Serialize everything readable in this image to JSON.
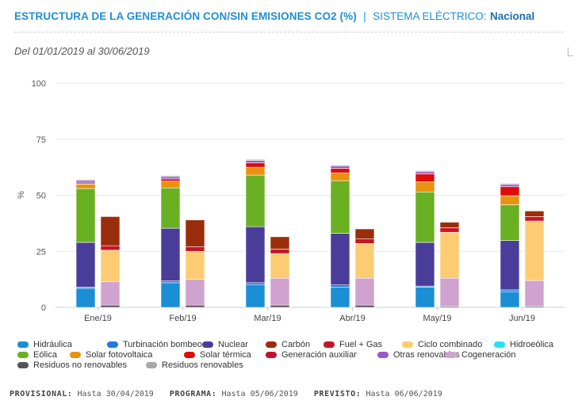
{
  "header": {
    "title": "ESTRUCTURA DE LA GENERACIÓN CON/SIN EMISIONES CO2 (%)",
    "separator": "|",
    "system_label": "SISTEMA ELÉCTRICO:",
    "system_value": "Nacional"
  },
  "period": "Del 01/01/2019 al 30/06/2019",
  "footer": {
    "provisional_label": "PROVISIONAL:",
    "provisional_value": "Hasta 30/04/2019",
    "programa_label": "PROGRAMA:",
    "programa_value": "Hasta 05/06/2019",
    "previsto_label": "PREVISTO:",
    "previsto_value": "Hasta 06/06/2019"
  },
  "chart_data": {
    "type": "bar",
    "stacked": true,
    "ylabel": "%",
    "ylim": [
      0,
      100
    ],
    "yticks": [
      0,
      25,
      50,
      75,
      100
    ],
    "grid": true,
    "legend_position": "bottom",
    "categories": [
      "Ene/19",
      "Feb/19",
      "Mar/19",
      "Abr/19",
      "May/19",
      "Jun/19"
    ],
    "groups": [
      "sin_emisiones",
      "con_emisiones"
    ],
    "series": [
      {
        "name": "Hidráulica",
        "color": "#1a8fd6",
        "group": "sin_emisiones",
        "values": [
          8.5,
          11.0,
          10.0,
          9.0,
          9.0,
          7.0
        ]
      },
      {
        "name": "Turbinación bombeo",
        "color": "#1f7bdc",
        "group": "sin_emisiones",
        "values": [
          0.5,
          0.8,
          1.0,
          1.0,
          0.5,
          0.8
        ]
      },
      {
        "name": "Nuclear",
        "color": "#4a3d9a",
        "group": "sin_emisiones",
        "values": [
          20.0,
          23.5,
          25.0,
          23.0,
          19.5,
          22.0
        ]
      },
      {
        "name": "Eólica",
        "color": "#6ab023",
        "group": "sin_emisiones",
        "values": [
          24.0,
          18.0,
          23.0,
          23.5,
          22.5,
          16.0
        ]
      },
      {
        "name": "Solar fotovoltaica",
        "color": "#e8920f",
        "group": "sin_emisiones",
        "values": [
          2.0,
          3.0,
          3.5,
          3.5,
          4.5,
          4.0
        ]
      },
      {
        "name": "Solar térmica",
        "color": "#e00b0b",
        "group": "sin_emisiones",
        "values": [
          0.5,
          1.0,
          2.0,
          2.0,
          3.5,
          4.0
        ]
      },
      {
        "name": "Otras renovables",
        "color": "#9b59c6",
        "group": "sin_emisiones",
        "values": [
          1.0,
          1.0,
          1.0,
          1.0,
          1.0,
          1.0
        ]
      },
      {
        "name": "Residuos renovables",
        "color": "#a8a8a8",
        "group": "sin_emisiones",
        "values": [
          0.5,
          0.5,
          0.5,
          0.5,
          0.5,
          0.5
        ]
      },
      {
        "name": "Hidroeólica",
        "color": "#27e2ee",
        "group": "sin_emisiones",
        "values": [
          0.0,
          0.0,
          0.0,
          0.0,
          0.0,
          0.0
        ]
      },
      {
        "name": "Residuos no renovables",
        "color": "#555555",
        "group": "con_emisiones",
        "values": [
          1.0,
          1.0,
          1.0,
          1.0,
          0.5,
          0.5
        ]
      },
      {
        "name": "Cogeneración",
        "color": "#cfa2cf",
        "group": "con_emisiones",
        "values": [
          10.5,
          11.5,
          12.0,
          12.0,
          12.5,
          11.5
        ]
      },
      {
        "name": "Ciclo combinado",
        "color": "#fdcc72",
        "group": "con_emisiones",
        "values": [
          14.0,
          12.5,
          11.0,
          15.5,
          20.5,
          26.5
        ]
      },
      {
        "name": "Generación auxiliar",
        "color": "#c8102e",
        "group": "con_emisiones",
        "values": [
          0.0,
          0.0,
          0.0,
          0.0,
          0.0,
          0.0
        ]
      },
      {
        "name": "Fuel + Gas",
        "color": "#c61527",
        "group": "con_emisiones",
        "values": [
          2.0,
          2.0,
          2.0,
          2.0,
          2.0,
          2.0
        ]
      },
      {
        "name": "Carbón",
        "color": "#9b2e0a",
        "group": "con_emisiones",
        "values": [
          13.0,
          12.0,
          5.5,
          4.5,
          2.5,
          2.5
        ]
      }
    ]
  },
  "legend": [
    {
      "name": "Hidráulica",
      "color": "#1a8fd6"
    },
    {
      "name": "Turbinación bombeo",
      "color": "#1f7bdc"
    },
    {
      "name": "Nuclear",
      "color": "#4a3d9a"
    },
    {
      "name": "Carbón",
      "color": "#9b2e0a"
    },
    {
      "name": "Fuel + Gas",
      "color": "#c61527"
    },
    {
      "name": "Ciclo combinado",
      "color": "#fdcc72"
    },
    {
      "name": "Hidroeólica",
      "color": "#27e2ee"
    },
    {
      "name": "Eólica",
      "color": "#6ab023"
    },
    {
      "name": "Solar fotovoltaica",
      "color": "#e8920f"
    },
    {
      "name": "Solar térmica",
      "color": "#e00b0b"
    },
    {
      "name": "Generación auxiliar",
      "color": "#c8102e"
    },
    {
      "name": "Otras renovables",
      "color": "#9b59c6"
    },
    {
      "name": "Cogeneración",
      "color": "#cfa2cf"
    },
    {
      "name": "Residuos no renovables",
      "color": "#555555"
    },
    {
      "name": "Residuos renovables",
      "color": "#a8a8a8"
    }
  ]
}
